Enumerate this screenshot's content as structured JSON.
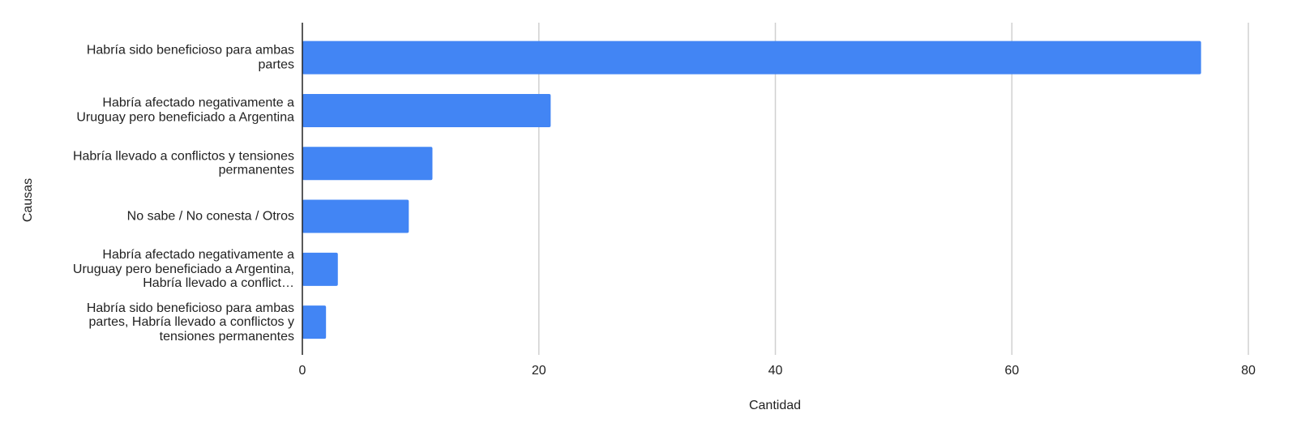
{
  "chart_data": {
    "type": "bar",
    "orientation": "horizontal",
    "categories": [
      "Habría sido beneficioso para ambas partes",
      "Habría afectado negativamente a Uruguay pero beneficiado a Argentina",
      "Habría llevado a conflictos y tensiones permanentes",
      "No sabe / No conesta / Otros",
      "Habría afectado negativamente a Uruguay pero beneficiado a Argentina, Habría llevado a conflict…",
      "Habría sido beneficioso para ambas partes, Habría llevado a conflictos y tensiones permanentes"
    ],
    "values": [
      76,
      21,
      11,
      9,
      3,
      2
    ],
    "color": "#4285f4",
    "xlim": [
      0,
      80
    ],
    "xticks": [
      0,
      20,
      40,
      60,
      80
    ],
    "grid": true,
    "xlabel": "Cantidad",
    "ylabel": "Causas"
  }
}
